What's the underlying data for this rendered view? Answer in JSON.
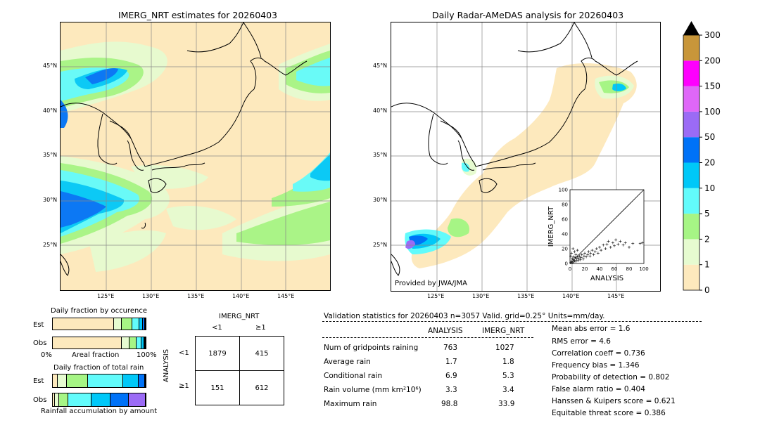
{
  "left_panel": {
    "title": "IMERG_NRT estimates for 20260403",
    "lat_labels": [
      "45°N",
      "40°N",
      "35°N",
      "30°N",
      "25°N"
    ],
    "lon_labels": [
      "125°E",
      "130°E",
      "135°E",
      "140°E",
      "145°E"
    ]
  },
  "right_panel": {
    "title": "Daily Radar-AMeDAS analysis for 20260403",
    "lat_labels": [
      "45°N",
      "40°N",
      "35°N",
      "30°N",
      "25°N"
    ],
    "lon_labels": [
      "125°E",
      "130°E",
      "135°E",
      "140°E",
      "145°E"
    ],
    "credit": "Provided by JWA/JMA"
  },
  "colorbar": {
    "ticks": [
      "0",
      "1",
      "2",
      "5",
      "10",
      "20",
      "50",
      "100",
      "150",
      "200",
      "300"
    ],
    "colors": [
      "#fde9bd",
      "#e6fbd0",
      "#a6f585",
      "#62fbfb",
      "#00c8f8",
      "#0072f7",
      "#9b6bf5",
      "#df67f8",
      "#fe00fe",
      "#c8963a"
    ],
    "extend_color": "#000000"
  },
  "occurrence": {
    "title": "Daily fraction by occurence",
    "rows": [
      "Est",
      "Obs"
    ],
    "axis_left": "0%",
    "axis_mid": "Areal fraction",
    "axis_right": "100%"
  },
  "total_rain": {
    "title": "Daily fraction of total rain",
    "rows": [
      "Est",
      "Obs"
    ],
    "xlabel": "Rainfall accumulation by amount"
  },
  "contingency": {
    "col_title": "IMERG_NRT",
    "col_labels": [
      "<1",
      "≥1"
    ],
    "row_title": "ANALYSIS",
    "row_labels": [
      "<1",
      "≥1"
    ],
    "cells": [
      [
        "1879",
        "415"
      ],
      [
        "151",
        "612"
      ]
    ]
  },
  "validation": {
    "header": "Validation statistics for 20260403  n=3057 Valid. grid=0.25° Units=mm/day.",
    "col_analysis": "ANALYSIS",
    "col_imerg": "IMERG_NRT",
    "rows": [
      {
        "label": "Num of gridpoints raining",
        "analysis": "763",
        "imerg": "1027"
      },
      {
        "label": "Average rain",
        "analysis": "1.7",
        "imerg": "1.8"
      },
      {
        "label": "Conditional rain",
        "analysis": "6.9",
        "imerg": "5.3"
      },
      {
        "label": "Rain volume (mm km²10⁶)",
        "analysis": "3.3",
        "imerg": "3.4"
      },
      {
        "label": "Maximum rain",
        "analysis": "98.8",
        "imerg": "33.9"
      }
    ],
    "scores": [
      "Mean abs error =    1.6",
      "RMS error =    4.6",
      "Correlation coeff =  0.736",
      "Frequency bias =  1.346",
      "Probability of detection =  0.802",
      "False alarm ratio =  0.404",
      "Hanssen & Kuipers score =  0.621",
      "Equitable threat score =  0.386"
    ]
  },
  "chart_data": [
    {
      "type": "scatter",
      "title": "",
      "xlabel": "ANALYSIS",
      "ylabel": "IMERG_NRT",
      "xlim": [
        0,
        100
      ],
      "ylim": [
        0,
        100
      ],
      "ticks": [
        0,
        20,
        40,
        60,
        80,
        100
      ],
      "points": [
        [
          1,
          1
        ],
        [
          2,
          3
        ],
        [
          3,
          1
        ],
        [
          4,
          5
        ],
        [
          5,
          2
        ],
        [
          6,
          4
        ],
        [
          7,
          8
        ],
        [
          8,
          3
        ],
        [
          9,
          6
        ],
        [
          10,
          9
        ],
        [
          11,
          4
        ],
        [
          12,
          7
        ],
        [
          13,
          10
        ],
        [
          14,
          5
        ],
        [
          15,
          8
        ],
        [
          16,
          12
        ],
        [
          18,
          6
        ],
        [
          19,
          10
        ],
        [
          20,
          14
        ],
        [
          22,
          9
        ],
        [
          24,
          12
        ],
        [
          25,
          16
        ],
        [
          27,
          10
        ],
        [
          28,
          14
        ],
        [
          30,
          18
        ],
        [
          32,
          12
        ],
        [
          34,
          16
        ],
        [
          36,
          20
        ],
        [
          38,
          14
        ],
        [
          40,
          22
        ],
        [
          42,
          18
        ],
        [
          45,
          25
        ],
        [
          48,
          20
        ],
        [
          50,
          26
        ],
        [
          52,
          30
        ],
        [
          55,
          22
        ],
        [
          58,
          28
        ],
        [
          60,
          24
        ],
        [
          62,
          32
        ],
        [
          65,
          26
        ],
        [
          68,
          30
        ],
        [
          72,
          25
        ],
        [
          75,
          28
        ],
        [
          80,
          22
        ],
        [
          85,
          27
        ],
        [
          95,
          27
        ],
        [
          98,
          28
        ],
        [
          3,
          7
        ],
        [
          5,
          9
        ],
        [
          8,
          12
        ],
        [
          2,
          14
        ],
        [
          6,
          16
        ],
        [
          10,
          18
        ],
        [
          4,
          20
        ],
        [
          1,
          10
        ]
      ]
    },
    {
      "type": "bar",
      "title": "Daily fraction by occurence",
      "stacked": true,
      "categories": [
        "Est",
        "Obs"
      ],
      "xlabel": "Areal fraction",
      "series_colors": [
        "#fde9bd",
        "#e6fbd0",
        "#a6f585",
        "#62fbfb",
        "#00c8f8",
        "#0072f7",
        "#9b6bf5"
      ],
      "values": [
        [
          0.66,
          0.08,
          0.12,
          0.07,
          0.04,
          0.02,
          0.01
        ],
        [
          0.75,
          0.08,
          0.08,
          0.05,
          0.03,
          0.01,
          0.0
        ]
      ]
    },
    {
      "type": "bar",
      "title": "Daily fraction of total rain",
      "stacked": true,
      "categories": [
        "Est",
        "Obs"
      ],
      "xlabel": "Rainfall accumulation by amount",
      "series_colors": [
        "#fde9bd",
        "#e6fbd0",
        "#a6f585",
        "#62fbfb",
        "#00c8f8",
        "#0072f7",
        "#9b6bf5"
      ],
      "values": [
        [
          0.05,
          0.1,
          0.23,
          0.38,
          0.17,
          0.07,
          0.0
        ],
        [
          0.02,
          0.05,
          0.1,
          0.25,
          0.2,
          0.2,
          0.18
        ]
      ]
    }
  ]
}
